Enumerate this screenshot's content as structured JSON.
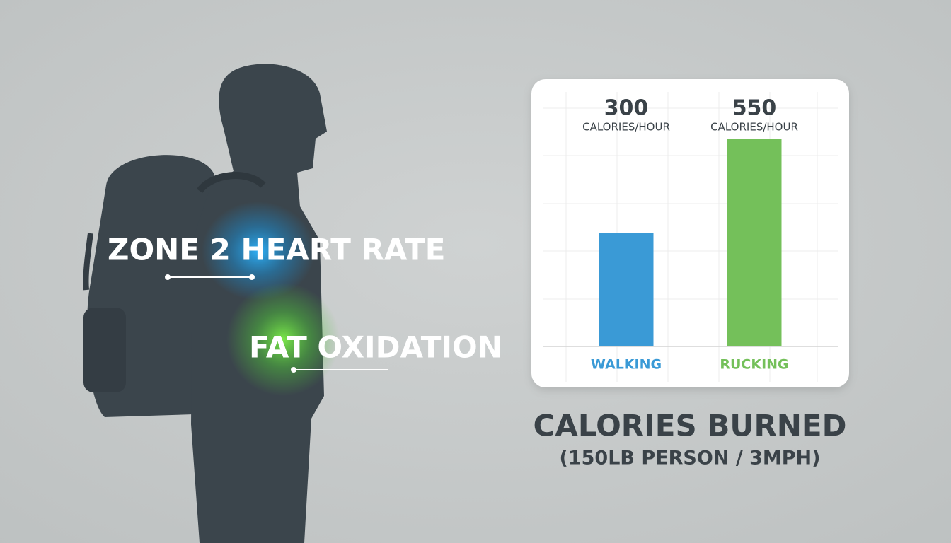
{
  "chart_data": {
    "type": "bar",
    "title": "CALORIES BURNED",
    "subtitle": "(150LB PERSON / 3MPH)",
    "categories": [
      "WALKING",
      "RUCKING"
    ],
    "values": [
      300,
      550
    ],
    "unit_label": "CALORIES/HOUR",
    "colors": [
      "#3a9ad6",
      "#74c05a"
    ],
    "grid": true,
    "annotations": [
      "ZONE 2 HEART RATE",
      "FAT OXIDATION"
    ]
  }
}
